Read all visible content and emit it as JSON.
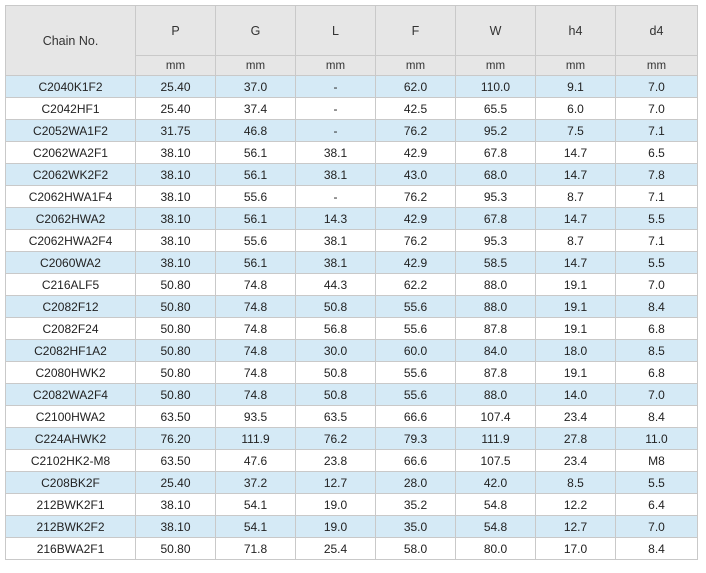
{
  "table": {
    "corner_label": "Chain No.",
    "columns": [
      "P",
      "G",
      "L",
      "F",
      "W",
      "h4",
      "d4"
    ],
    "units": [
      "mm",
      "mm",
      "mm",
      "mm",
      "mm",
      "mm",
      "mm"
    ],
    "highlight_color": "#d5eaf6",
    "rows": [
      {
        "chain_no": "C2040K1F2",
        "values": [
          "25.40",
          "37.0",
          "-",
          "62.0",
          "110.0",
          "9.1",
          "7.0"
        ],
        "highlight": true
      },
      {
        "chain_no": "C2042HF1",
        "values": [
          "25.40",
          "37.4",
          "-",
          "42.5",
          "65.5",
          "6.0",
          "7.0"
        ],
        "highlight": false
      },
      {
        "chain_no": "C2052WA1F2",
        "values": [
          "31.75",
          "46.8",
          "-",
          "76.2",
          "95.2",
          "7.5",
          "7.1"
        ],
        "highlight": true
      },
      {
        "chain_no": "C2062WA2F1",
        "values": [
          "38.10",
          "56.1",
          "38.1",
          "42.9",
          "67.8",
          "14.7",
          "6.5"
        ],
        "highlight": false
      },
      {
        "chain_no": "C2062WK2F2",
        "values": [
          "38.10",
          "56.1",
          "38.1",
          "43.0",
          "68.0",
          "14.7",
          "7.8"
        ],
        "highlight": true
      },
      {
        "chain_no": "C2062HWA1F4",
        "values": [
          "38.10",
          "55.6",
          "-",
          "76.2",
          "95.3",
          "8.7",
          "7.1"
        ],
        "highlight": false
      },
      {
        "chain_no": "C2062HWA2",
        "values": [
          "38.10",
          "56.1",
          "14.3",
          "42.9",
          "67.8",
          "14.7",
          "5.5"
        ],
        "highlight": true
      },
      {
        "chain_no": "C2062HWA2F4",
        "values": [
          "38.10",
          "55.6",
          "38.1",
          "76.2",
          "95.3",
          "8.7",
          "7.1"
        ],
        "highlight": false
      },
      {
        "chain_no": "C2060WA2",
        "values": [
          "38.10",
          "56.1",
          "38.1",
          "42.9",
          "58.5",
          "14.7",
          "5.5"
        ],
        "highlight": true
      },
      {
        "chain_no": "C216ALF5",
        "values": [
          "50.80",
          "74.8",
          "44.3",
          "62.2",
          "88.0",
          "19.1",
          "7.0"
        ],
        "highlight": false
      },
      {
        "chain_no": "C2082F12",
        "values": [
          "50.80",
          "74.8",
          "50.8",
          "55.6",
          "88.0",
          "19.1",
          "8.4"
        ],
        "highlight": true
      },
      {
        "chain_no": "C2082F24",
        "values": [
          "50.80",
          "74.8",
          "56.8",
          "55.6",
          "87.8",
          "19.1",
          "6.8"
        ],
        "highlight": false
      },
      {
        "chain_no": "C2082HF1A2",
        "values": [
          "50.80",
          "74.8",
          "30.0",
          "60.0",
          "84.0",
          "18.0",
          "8.5"
        ],
        "highlight": true
      },
      {
        "chain_no": "C2080HWK2",
        "values": [
          "50.80",
          "74.8",
          "50.8",
          "55.6",
          "87.8",
          "19.1",
          "6.8"
        ],
        "highlight": false
      },
      {
        "chain_no": "C2082WA2F4",
        "values": [
          "50.80",
          "74.8",
          "50.8",
          "55.6",
          "88.0",
          "14.0",
          "7.0"
        ],
        "highlight": true
      },
      {
        "chain_no": "C2100HWA2",
        "values": [
          "63.50",
          "93.5",
          "63.5",
          "66.6",
          "107.4",
          "23.4",
          "8.4"
        ],
        "highlight": false
      },
      {
        "chain_no": "C224AHWK2",
        "values": [
          "76.20",
          "111.9",
          "76.2",
          "79.3",
          "111.9",
          "27.8",
          "11.0"
        ],
        "highlight": true
      },
      {
        "chain_no": "C2102HK2-M8",
        "values": [
          "63.50",
          "47.6",
          "23.8",
          "66.6",
          "107.5",
          "23.4",
          "M8"
        ],
        "highlight": false
      },
      {
        "chain_no": "C208BK2F",
        "values": [
          "25.40",
          "37.2",
          "12.7",
          "28.0",
          "42.0",
          "8.5",
          "5.5"
        ],
        "highlight": true
      },
      {
        "chain_no": "212BWK2F1",
        "values": [
          "38.10",
          "54.1",
          "19.0",
          "35.2",
          "54.8",
          "12.2",
          "6.4"
        ],
        "highlight": false
      },
      {
        "chain_no": "212BWK2F2",
        "values": [
          "38.10",
          "54.1",
          "19.0",
          "35.0",
          "54.8",
          "12.7",
          "7.0"
        ],
        "highlight": true
      },
      {
        "chain_no": "216BWA2F1",
        "values": [
          "50.80",
          "71.8",
          "25.4",
          "58.0",
          "80.0",
          "17.0",
          "8.4"
        ],
        "highlight": false
      }
    ]
  }
}
